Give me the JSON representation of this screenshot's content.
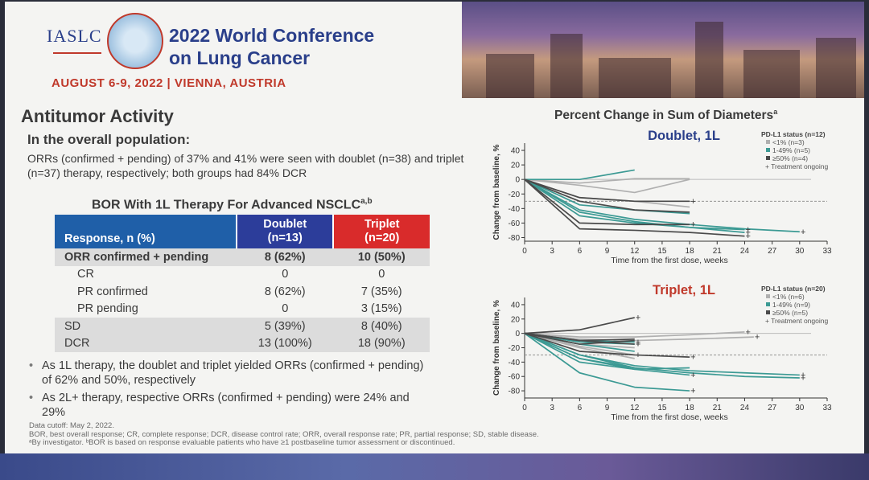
{
  "conference": {
    "org": "IASLC",
    "title_line1": "2022 World Conference",
    "title_line2": "on Lung Cancer",
    "dates": "AUGUST 6-9, 2022 | VIENNA, AUSTRIA"
  },
  "content": {
    "heading": "Antitumor Activity",
    "subheading": "In the overall population:",
    "summary": "ORRs (confirmed + pending) of 37% and 41% were seen with doublet (n=38) and triplet (n=37) therapy, respectively; both groups had 84% DCR",
    "table_title": "BOR With 1L Therapy For Advanced NSCLC",
    "table_title_sup": "a,b",
    "table": {
      "headers": [
        "Response, n (%)",
        "Doublet",
        "(n=13)",
        "Triplet",
        "(n=20)"
      ],
      "rows": [
        {
          "label": "ORR confirmed + pending",
          "doublet": "8 (62%)",
          "triplet": "10 (50%)"
        },
        {
          "label": "CR",
          "doublet": "0",
          "triplet": "0"
        },
        {
          "label": "PR confirmed",
          "doublet": "8 (62%)",
          "triplet": "7 (35%)"
        },
        {
          "label": "PR pending",
          "doublet": "0",
          "triplet": "3 (15%)"
        },
        {
          "label": "SD",
          "doublet": "5 (39%)",
          "triplet": "8 (40%)"
        },
        {
          "label": "DCR",
          "doublet": "13 (100%)",
          "triplet": "18 (90%)"
        }
      ]
    },
    "bullets": [
      "As 1L therapy, the doublet and triplet yielded ORRs (confirmed + pending) of 62% and 50%, respectively",
      "As 2L+ therapy, respective ORRs (confirmed + pending) were 24% and 29%"
    ],
    "footnotes": [
      "Data cutoff: May 2, 2022.",
      "BOR, best overall response; CR, complete response; DCR, disease control rate; ORR, overall response rate; PR, partial response; SD, stable disease.",
      "ᵃBy investigator. ᵇBOR is based on response evaluable patients who have ≥1 postbaseline tumor assessment or discontinued."
    ]
  },
  "colors": {
    "brand_blue": "#2a3f8a",
    "accent_red": "#c0392b",
    "pd_low": "#b0b0b0",
    "pd_mid": "#3c9a94",
    "pd_high": "#4a4a4a",
    "ref_line": "#888888"
  },
  "chart_section_title": "Percent Change in Sum of Diameters",
  "chart_section_sup": "a",
  "chart_data": [
    {
      "type": "line",
      "title": "Doublet, 1L",
      "xlabel": "Time from the first dose, weeks",
      "ylabel": "Change from baseline, %",
      "xticks": [
        0,
        3,
        6,
        9,
        12,
        15,
        18,
        21,
        24,
        27,
        30,
        33
      ],
      "yticks": [
        40,
        20,
        0,
        -20,
        -40,
        -60,
        -80
      ],
      "xlim": [
        0,
        33
      ],
      "ylim": [
        -85,
        50
      ],
      "reference_line_y": -30,
      "legend_title": "PD-L1 status (n=12)",
      "legend": [
        {
          "label": "<1% (n=3)",
          "group": "low"
        },
        {
          "label": "1-49% (n=5)",
          "group": "mid"
        },
        {
          "label": "≥50% (n=4)",
          "group": "high"
        },
        {
          "label": "+ Treatment ongoing",
          "group": "marker"
        }
      ],
      "series": [
        {
          "group": "low",
          "x": [
            0,
            6,
            12,
            18
          ],
          "y": [
            0,
            -5,
            1,
            1
          ],
          "ongoing": false
        },
        {
          "group": "low",
          "x": [
            0,
            6,
            12,
            18
          ],
          "y": [
            0,
            -8,
            -18,
            0
          ],
          "ongoing": false
        },
        {
          "group": "low",
          "x": [
            0,
            6,
            12,
            18
          ],
          "y": [
            0,
            -25,
            -30,
            -38
          ],
          "ongoing": false
        },
        {
          "group": "mid",
          "x": [
            0,
            6,
            12
          ],
          "y": [
            0,
            0,
            13
          ],
          "ongoing": false
        },
        {
          "group": "mid",
          "x": [
            0,
            6,
            12,
            18
          ],
          "y": [
            0,
            -35,
            -42,
            -47
          ],
          "ongoing": false
        },
        {
          "group": "mid",
          "x": [
            0,
            6,
            12,
            18,
            24,
            30
          ],
          "y": [
            0,
            -42,
            -55,
            -62,
            -68,
            -72
          ],
          "ongoing": true
        },
        {
          "group": "mid",
          "x": [
            0,
            6,
            12,
            18,
            24
          ],
          "y": [
            0,
            -50,
            -60,
            -66,
            -69
          ],
          "ongoing": true
        },
        {
          "group": "mid",
          "x": [
            0,
            6,
            12,
            18,
            24
          ],
          "y": [
            0,
            -45,
            -58,
            -66,
            -73
          ],
          "ongoing": true
        },
        {
          "group": "high",
          "x": [
            0,
            6,
            12,
            18
          ],
          "y": [
            0,
            -25,
            -30,
            -30
          ],
          "ongoing": true
        },
        {
          "group": "high",
          "x": [
            0,
            6,
            12,
            18
          ],
          "y": [
            0,
            -30,
            -42,
            -45
          ],
          "ongoing": false
        },
        {
          "group": "high",
          "x": [
            0,
            6,
            12,
            18
          ],
          "y": [
            0,
            -60,
            -62,
            -62
          ],
          "ongoing": true
        },
        {
          "group": "high",
          "x": [
            0,
            6,
            12,
            18,
            24
          ],
          "y": [
            0,
            -68,
            -70,
            -73,
            -78
          ],
          "ongoing": true
        }
      ]
    },
    {
      "type": "line",
      "title": "Triplet, 1L",
      "xlabel": "Time from the first dose, weeks",
      "ylabel": "Change from baseline, %",
      "xticks": [
        0,
        3,
        6,
        9,
        12,
        15,
        18,
        21,
        24,
        27,
        30,
        33
      ],
      "yticks": [
        40,
        20,
        0,
        -20,
        -40,
        -60,
        -80
      ],
      "xlim": [
        0,
        33
      ],
      "ylim": [
        -90,
        50
      ],
      "reference_line_y": -30,
      "legend_title": "PD-L1 status (n=20)",
      "legend": [
        {
          "label": "<1% (n=6)",
          "group": "low"
        },
        {
          "label": "1-49% (n=9)",
          "group": "mid"
        },
        {
          "label": "≥50% (n=5)",
          "group": "high"
        },
        {
          "label": "+ Treatment ongoing",
          "group": "marker"
        }
      ],
      "series": [
        {
          "group": "low",
          "x": [
            0,
            6
          ],
          "y": [
            0,
            5
          ],
          "ongoing": false
        },
        {
          "group": "low",
          "x": [
            0,
            6,
            12,
            18,
            24
          ],
          "y": [
            0,
            -5,
            -5,
            -2,
            2
          ],
          "ongoing": true
        },
        {
          "group": "low",
          "x": [
            0,
            6,
            12,
            18,
            25
          ],
          "y": [
            0,
            -8,
            -10,
            -8,
            -5
          ],
          "ongoing": true
        },
        {
          "group": "low",
          "x": [
            0,
            6,
            12
          ],
          "y": [
            0,
            -15,
            -20
          ],
          "ongoing": false
        },
        {
          "group": "low",
          "x": [
            0,
            6,
            12
          ],
          "y": [
            0,
            -18,
            -30
          ],
          "ongoing": true
        },
        {
          "group": "low",
          "x": [
            0,
            6,
            12
          ],
          "y": [
            0,
            -20,
            -35
          ],
          "ongoing": false
        },
        {
          "group": "mid",
          "x": [
            0,
            6,
            12
          ],
          "y": [
            0,
            -10,
            -12
          ],
          "ongoing": true
        },
        {
          "group": "mid",
          "x": [
            0,
            6,
            12
          ],
          "y": [
            0,
            -12,
            -15
          ],
          "ongoing": true
        },
        {
          "group": "mid",
          "x": [
            0,
            6,
            12
          ],
          "y": [
            0,
            -15,
            -25
          ],
          "ongoing": false
        },
        {
          "group": "mid",
          "x": [
            0,
            6,
            12,
            18,
            24,
            30
          ],
          "y": [
            0,
            -30,
            -45,
            -52,
            -55,
            -58
          ],
          "ongoing": true
        },
        {
          "group": "mid",
          "x": [
            0,
            6,
            12,
            18,
            24,
            30
          ],
          "y": [
            0,
            -35,
            -48,
            -55,
            -60,
            -62
          ],
          "ongoing": true
        },
        {
          "group": "mid",
          "x": [
            0,
            6,
            12,
            18
          ],
          "y": [
            0,
            -40,
            -50,
            -58
          ],
          "ongoing": true
        },
        {
          "group": "mid",
          "x": [
            0,
            6,
            12,
            18
          ],
          "y": [
            0,
            -35,
            -50,
            -48
          ],
          "ongoing": false
        },
        {
          "group": "mid",
          "x": [
            0,
            6,
            12
          ],
          "y": [
            0,
            -30,
            -48
          ],
          "ongoing": false
        },
        {
          "group": "mid",
          "x": [
            0,
            6,
            12,
            18
          ],
          "y": [
            0,
            -55,
            -75,
            -80
          ],
          "ongoing": true
        },
        {
          "group": "high",
          "x": [
            0,
            6,
            12
          ],
          "y": [
            0,
            5,
            22
          ],
          "ongoing": true
        },
        {
          "group": "high",
          "x": [
            0,
            6,
            12
          ],
          "y": [
            0,
            -10,
            -15
          ],
          "ongoing": true
        },
        {
          "group": "high",
          "x": [
            0,
            6,
            12,
            18
          ],
          "y": [
            0,
            -25,
            -30,
            -33
          ],
          "ongoing": true
        },
        {
          "group": "high",
          "x": [
            0,
            6,
            12
          ],
          "y": [
            0,
            -10,
            -8
          ],
          "ongoing": false
        },
        {
          "group": "high",
          "x": [
            0,
            6,
            12
          ],
          "y": [
            0,
            -15,
            -10
          ],
          "ongoing": false
        }
      ]
    }
  ]
}
